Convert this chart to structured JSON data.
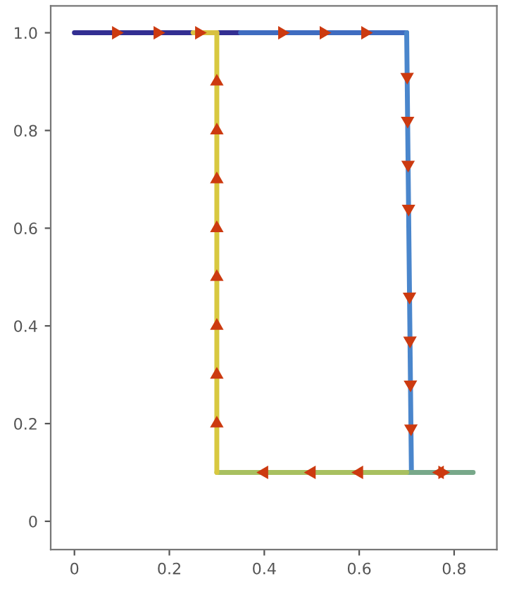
{
  "chart_data": {
    "type": "line",
    "xlim": [
      -0.05,
      0.89
    ],
    "ylim": [
      -0.058,
      1.055
    ],
    "xticks": [
      0,
      0.2,
      0.4,
      0.6,
      0.8
    ],
    "yticks": [
      0,
      0.2,
      0.4,
      0.6,
      0.8,
      {
        "value": 1,
        "label": "1.0"
      }
    ],
    "grid": false,
    "legend": false,
    "marker": "none",
    "line_style": "solid",
    "series": [
      {
        "color": "#332f92",
        "x": [
          0,
          0.35
        ],
        "values": [
          1,
          1
        ]
      },
      {
        "color": "#3f6cc0",
        "x": [
          0.35,
          0.7
        ],
        "values": [
          1,
          1
        ]
      },
      {
        "color": "#4a86cc",
        "x": [
          0.7,
          0.705,
          0.71
        ],
        "values": [
          1,
          0.55,
          0.1
        ]
      },
      {
        "color": "#78a88a",
        "x": [
          0.71,
          0.84,
          0.7
        ],
        "values": [
          0.1,
          0.1,
          0.1
        ]
      },
      {
        "color": "#a8c060",
        "x": [
          0.7,
          0.3
        ],
        "values": [
          0.1,
          0.1
        ]
      },
      {
        "color": "#d8c840",
        "x": [
          0.3,
          0.3
        ],
        "values": [
          0.1,
          1
        ]
      },
      {
        "color": "#d8c040",
        "x": [
          0.3,
          0.25
        ],
        "values": [
          1,
          1
        ]
      }
    ]
  }
}
